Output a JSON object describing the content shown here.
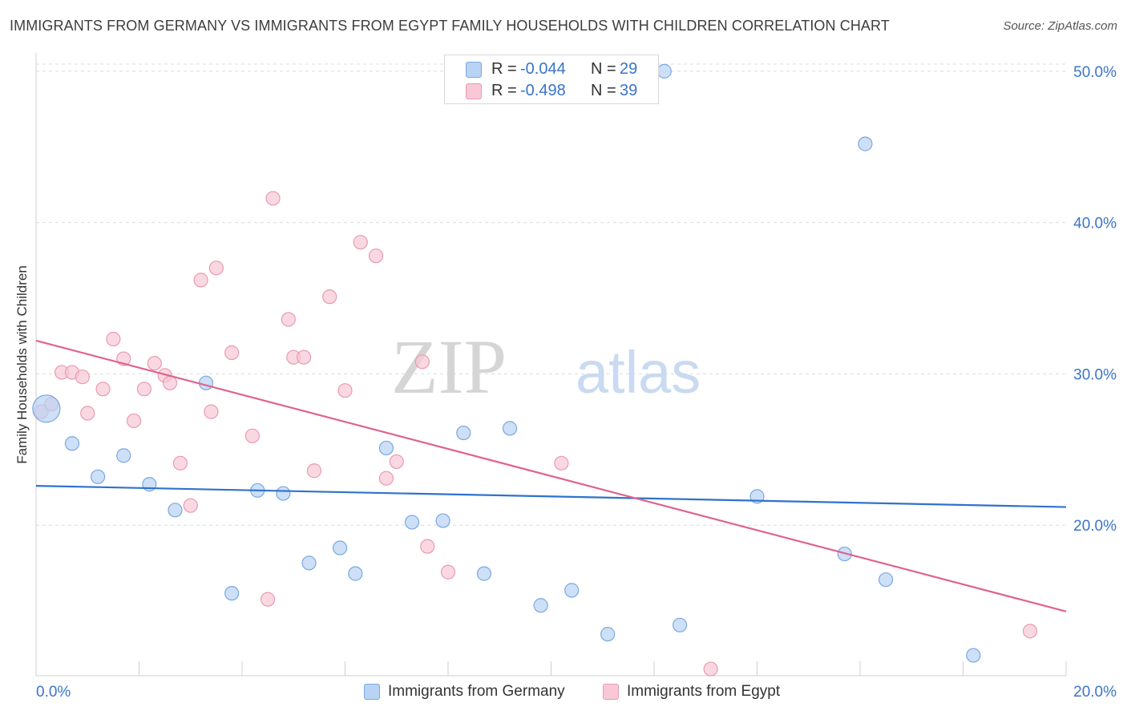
{
  "title": "IMMIGRANTS FROM GERMANY VS IMMIGRANTS FROM EGYPT FAMILY HOUSEHOLDS WITH CHILDREN CORRELATION CHART",
  "source": "Source: ZipAtlas.com",
  "watermark": {
    "part1": "ZIP",
    "part2": "atlas"
  },
  "colors": {
    "germany_fill": "#b8d3f3",
    "germany_stroke": "#7aa8e0",
    "germany_line": "#2f72cc",
    "egypt_fill": "#f8c8d6",
    "egypt_stroke": "#e99ab2",
    "egypt_line": "#e0628f",
    "axis_label": "#3a74c9",
    "grid": "#dcdcdc"
  },
  "legend_box": {
    "rows": [
      {
        "r_label": "R =",
        "r_value": "-0.044",
        "n_label": "N =",
        "n_value": "29"
      },
      {
        "r_label": "R =",
        "r_value": "-0.498",
        "n_label": "N =",
        "n_value": "39"
      }
    ]
  },
  "bottom_legend": [
    "Immigrants from Germany",
    "Immigrants from Egypt"
  ],
  "chart_data": {
    "type": "scatter",
    "title": "IMMIGRANTS FROM GERMANY VS IMMIGRANTS FROM EGYPT FAMILY HOUSEHOLDS WITH CHILDREN CORRELATION CHART",
    "xlabel": "",
    "ylabel": "Family Households with Children",
    "xlim": [
      0,
      20
    ],
    "ylim": [
      10.9,
      51
    ],
    "x_tick_labels": [
      "0.0%",
      "20.0%"
    ],
    "y_ticks": [
      20,
      30,
      40,
      50
    ],
    "y_tick_labels": [
      "20.0%",
      "30.0%",
      "40.0%",
      "50.0%"
    ],
    "grid": true,
    "legend_position": "top-center",
    "series": [
      {
        "name": "Immigrants from Germany",
        "R": -0.044,
        "N": 29,
        "trend": {
          "x": [
            0,
            20
          ],
          "y": [
            22.6,
            21.2
          ]
        },
        "points": [
          {
            "x": 0.2,
            "y": 27.7,
            "big": true
          },
          {
            "x": 0.7,
            "y": 25.4
          },
          {
            "x": 1.2,
            "y": 23.2
          },
          {
            "x": 1.7,
            "y": 24.6
          },
          {
            "x": 2.2,
            "y": 22.7
          },
          {
            "x": 2.7,
            "y": 21.0
          },
          {
            "x": 3.3,
            "y": 29.4
          },
          {
            "x": 3.8,
            "y": 15.5
          },
          {
            "x": 4.3,
            "y": 22.3
          },
          {
            "x": 4.8,
            "y": 22.1
          },
          {
            "x": 5.3,
            "y": 17.5
          },
          {
            "x": 5.9,
            "y": 18.5
          },
          {
            "x": 6.2,
            "y": 16.8
          },
          {
            "x": 6.8,
            "y": 25.1
          },
          {
            "x": 7.3,
            "y": 20.2
          },
          {
            "x": 7.9,
            "y": 20.3
          },
          {
            "x": 8.3,
            "y": 26.1
          },
          {
            "x": 8.7,
            "y": 16.8
          },
          {
            "x": 9.2,
            "y": 26.4
          },
          {
            "x": 9.8,
            "y": 14.7
          },
          {
            "x": 10.4,
            "y": 15.7
          },
          {
            "x": 11.1,
            "y": 12.8
          },
          {
            "x": 12.2,
            "y": 50.0
          },
          {
            "x": 12.5,
            "y": 13.4
          },
          {
            "x": 14.0,
            "y": 21.9
          },
          {
            "x": 15.7,
            "y": 18.1
          },
          {
            "x": 16.1,
            "y": 45.2
          },
          {
            "x": 16.5,
            "y": 16.4
          },
          {
            "x": 18.2,
            "y": 11.4
          }
        ]
      },
      {
        "name": "Immigrants from Egypt",
        "R": -0.498,
        "N": 39,
        "trend": {
          "x": [
            0,
            20
          ],
          "y": [
            32.2,
            14.3
          ]
        },
        "points": [
          {
            "x": 0.1,
            "y": 27.5
          },
          {
            "x": 0.3,
            "y": 28.0
          },
          {
            "x": 0.5,
            "y": 30.1
          },
          {
            "x": 0.7,
            "y": 30.1
          },
          {
            "x": 0.9,
            "y": 29.8
          },
          {
            "x": 1.0,
            "y": 27.4
          },
          {
            "x": 1.3,
            "y": 29.0
          },
          {
            "x": 1.5,
            "y": 32.3
          },
          {
            "x": 1.7,
            "y": 31.0
          },
          {
            "x": 1.9,
            "y": 26.9
          },
          {
            "x": 2.1,
            "y": 29.0
          },
          {
            "x": 2.3,
            "y": 30.7
          },
          {
            "x": 2.5,
            "y": 29.9
          },
          {
            "x": 2.6,
            "y": 29.4
          },
          {
            "x": 2.8,
            "y": 24.1
          },
          {
            "x": 3.0,
            "y": 21.3
          },
          {
            "x": 3.2,
            "y": 36.2
          },
          {
            "x": 3.4,
            "y": 27.5
          },
          {
            "x": 3.5,
            "y": 37.0
          },
          {
            "x": 3.8,
            "y": 31.4
          },
          {
            "x": 4.2,
            "y": 25.9
          },
          {
            "x": 4.5,
            "y": 15.1
          },
          {
            "x": 4.6,
            "y": 41.6
          },
          {
            "x": 4.9,
            "y": 33.6
          },
          {
            "x": 5.0,
            "y": 31.1
          },
          {
            "x": 5.2,
            "y": 31.1
          },
          {
            "x": 5.4,
            "y": 23.6
          },
          {
            "x": 5.7,
            "y": 35.1
          },
          {
            "x": 6.0,
            "y": 28.9
          },
          {
            "x": 6.3,
            "y": 38.7
          },
          {
            "x": 6.6,
            "y": 37.8
          },
          {
            "x": 6.8,
            "y": 23.1
          },
          {
            "x": 7.0,
            "y": 24.2
          },
          {
            "x": 7.5,
            "y": 30.8
          },
          {
            "x": 7.6,
            "y": 18.6
          },
          {
            "x": 8.0,
            "y": 16.9
          },
          {
            "x": 10.2,
            "y": 24.1
          },
          {
            "x": 13.1,
            "y": 10.5
          },
          {
            "x": 19.3,
            "y": 13.0
          }
        ]
      }
    ]
  }
}
